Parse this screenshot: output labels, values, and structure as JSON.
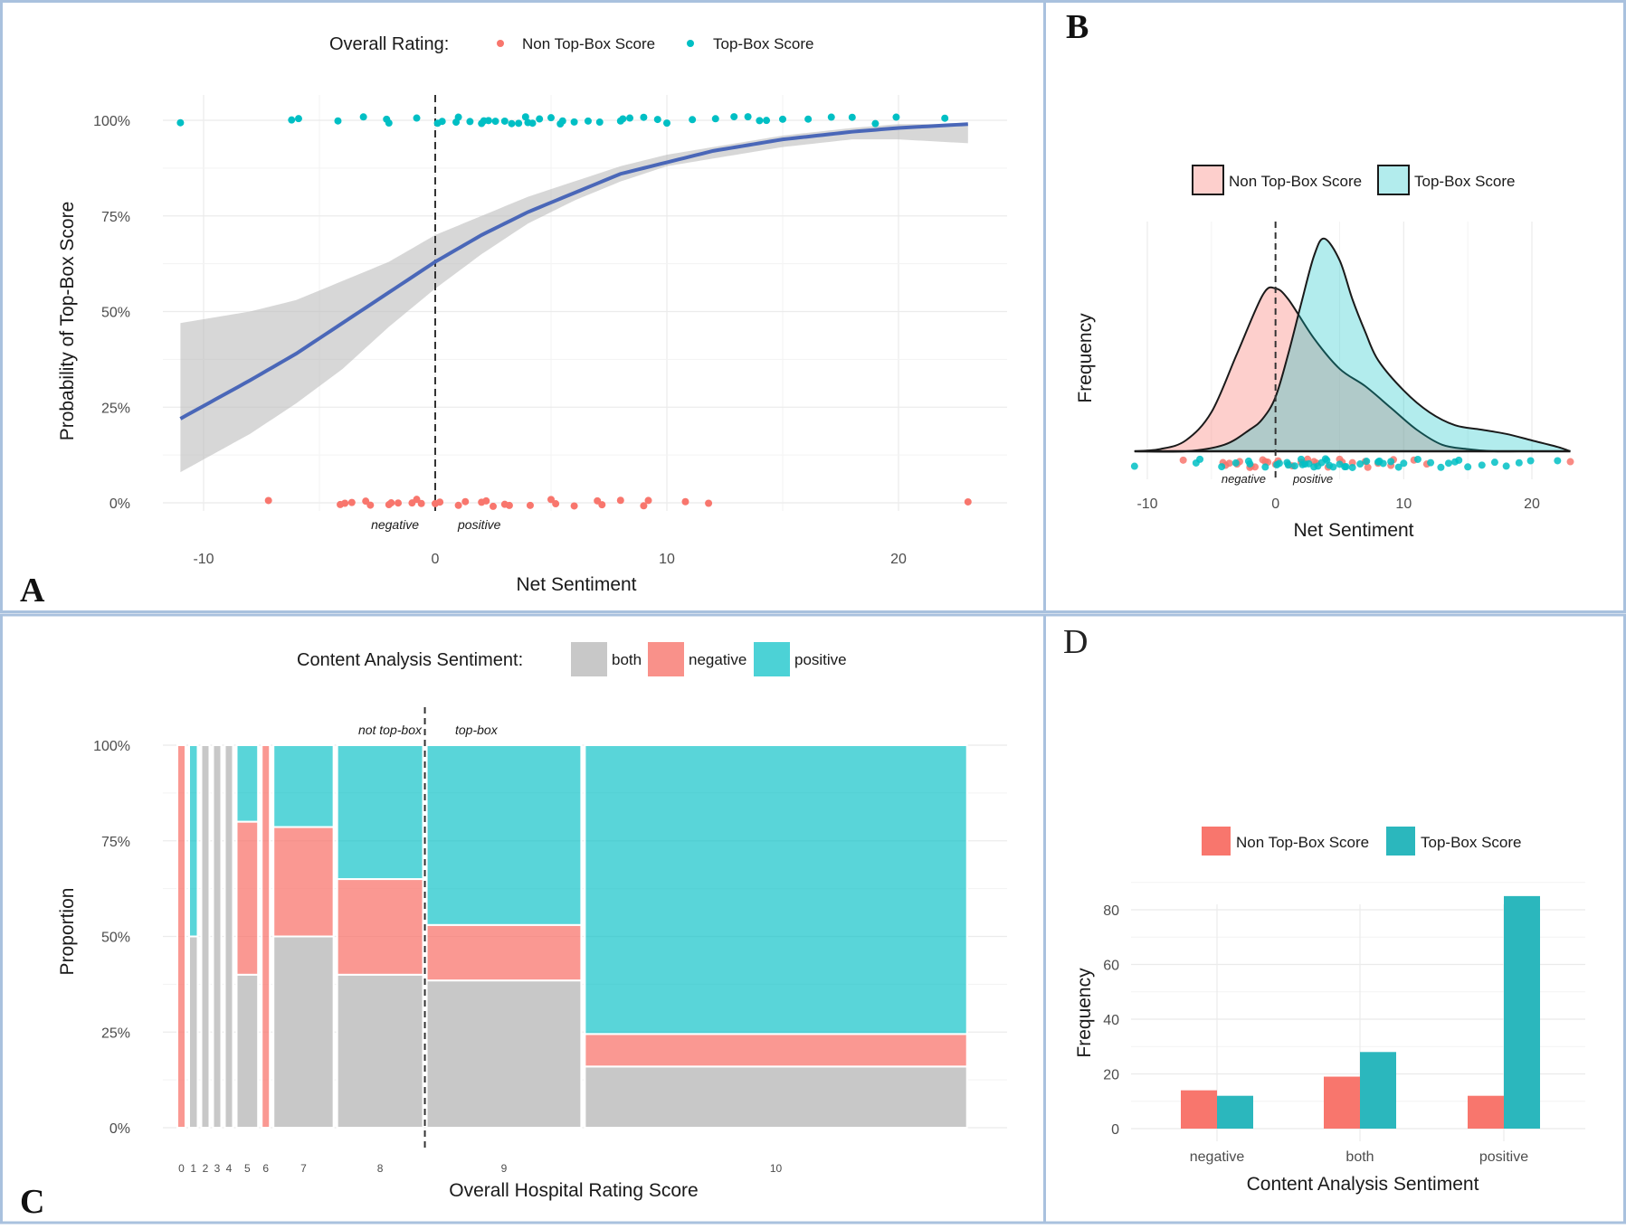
{
  "colors": {
    "non_top_box": "#F8766D",
    "top_box": "#00BFC4",
    "both": "#C8C8C8",
    "fit_line": "#4A67B8",
    "ribbon": "#BDBDBD",
    "panel_border": "#A9C1DE"
  },
  "chart_data": [
    {
      "panel": "A",
      "type": "scatter",
      "legend_title": "Overall Rating:",
      "legend": [
        "Non Top-Box Score",
        "Top-Box Score"
      ],
      "legend_position": "top",
      "xlabel": "Net Sentiment",
      "ylabel": "Probability of Top-Box Score",
      "xlim": [
        -11,
        23
      ],
      "ylim": [
        0,
        1
      ],
      "x_ticks": [
        "-10",
        "0",
        "10",
        "20"
      ],
      "y_ticks": [
        "0%",
        "25%",
        "50%",
        "75%",
        "100%"
      ],
      "annotations": [
        "negative",
        "positive"
      ],
      "grid": true,
      "reference_line_x": 0,
      "logistic_fit": {
        "x": [
          -11,
          -8,
          -6,
          -4,
          -2,
          0,
          2,
          4,
          6,
          8,
          10,
          12,
          15,
          18,
          20,
          23
        ],
        "y": [
          0.22,
          0.32,
          0.39,
          0.47,
          0.55,
          0.63,
          0.7,
          0.76,
          0.81,
          0.86,
          0.89,
          0.92,
          0.95,
          0.97,
          0.98,
          0.99
        ],
        "lower": [
          0.08,
          0.18,
          0.26,
          0.35,
          0.46,
          0.56,
          0.65,
          0.73,
          0.79,
          0.84,
          0.88,
          0.9,
          0.93,
          0.95,
          0.95,
          0.94
        ],
        "upper": [
          0.47,
          0.5,
          0.53,
          0.58,
          0.63,
          0.7,
          0.75,
          0.8,
          0.84,
          0.88,
          0.91,
          0.93,
          0.96,
          0.98,
          0.99,
          0.99
        ]
      },
      "series": [
        {
          "name": "Non Top-Box Score",
          "y": 0,
          "x": [
            -7.2,
            -4.1,
            -3.9,
            -3.6,
            -3.0,
            -2.8,
            -2.0,
            -1.9,
            -1.6,
            -1.0,
            -0.8,
            -0.6,
            0.0,
            0.2,
            1.0,
            1.3,
            2.0,
            2.2,
            2.5,
            3.0,
            3.2,
            4.1,
            5.0,
            5.2,
            6.0,
            7.0,
            7.2,
            8.0,
            9.0,
            9.2,
            10.8,
            11.8,
            23.0
          ]
        },
        {
          "name": "Top-Box Score",
          "y": 1,
          "x": [
            -11.0,
            -6.2,
            -5.9,
            -4.2,
            -3.1,
            -2.1,
            -2.0,
            -0.8,
            0.1,
            0.3,
            0.9,
            1.0,
            1.5,
            2.0,
            2.1,
            2.3,
            2.6,
            3.0,
            3.3,
            3.6,
            3.9,
            4.0,
            4.2,
            4.5,
            5.0,
            5.4,
            5.5,
            6.0,
            6.6,
            7.1,
            8.0,
            8.1,
            8.4,
            9.0,
            9.6,
            10.0,
            11.1,
            12.1,
            12.9,
            13.5,
            14.0,
            14.3,
            15.0,
            16.1,
            17.1,
            18.0,
            19.0,
            19.9,
            22.0
          ]
        }
      ]
    },
    {
      "panel": "B",
      "type": "area",
      "legend": [
        "Non Top-Box Score",
        "Top-Box Score"
      ],
      "legend_position": "top",
      "xlabel": "Net Sentiment",
      "ylabel": "Frequency",
      "xlim": [
        -11,
        23
      ],
      "x_ticks": [
        "-10",
        "0",
        "10",
        "20"
      ],
      "annotations": [
        "negative",
        "positive"
      ],
      "reference_line_x": 0,
      "series": [
        {
          "name": "Non Top-Box Score",
          "x": [
            -11,
            -9,
            -7,
            -5,
            -3,
            -1,
            0,
            1,
            3,
            5,
            7,
            9,
            11,
            13,
            15,
            17,
            19,
            21,
            23
          ],
          "density": [
            0.0,
            0.01,
            0.05,
            0.18,
            0.45,
            0.72,
            0.75,
            0.7,
            0.52,
            0.38,
            0.3,
            0.2,
            0.1,
            0.03,
            0.01,
            0.0,
            0.0,
            0.0,
            0.0
          ]
        },
        {
          "name": "Top-Box Score",
          "x": [
            -11,
            -7,
            -4,
            -2,
            -1,
            0,
            1,
            2,
            3,
            3.8,
            5,
            6,
            7,
            8,
            10,
            12,
            14,
            16,
            18,
            20,
            22,
            23
          ],
          "density": [
            0.0,
            0.0,
            0.03,
            0.1,
            0.15,
            0.25,
            0.45,
            0.68,
            0.9,
            0.98,
            0.88,
            0.7,
            0.55,
            0.42,
            0.28,
            0.18,
            0.12,
            0.1,
            0.08,
            0.05,
            0.02,
            0.0
          ]
        }
      ]
    },
    {
      "panel": "C",
      "type": "bar",
      "subtype": "mosaic",
      "legend_title": "Content Analysis Sentiment:",
      "legend": [
        "both",
        "negative",
        "positive"
      ],
      "legend_position": "top",
      "xlabel": "Overall Hospital Rating Score",
      "ylabel": "Proportion",
      "y_ticks": [
        "0%",
        "25%",
        "50%",
        "75%",
        "100%"
      ],
      "group_labels": [
        "not top-box",
        "top-box"
      ],
      "categories": [
        "0",
        "1",
        "2",
        "3",
        "4",
        "5",
        "6",
        "7",
        "8",
        "9",
        "10"
      ],
      "counts": [
        1,
        2,
        1,
        1,
        1,
        5,
        1,
        14,
        20,
        36,
        89
      ],
      "series": [
        {
          "name": "both",
          "values": [
            0,
            0.5,
            1,
            1,
            1,
            0.4,
            0,
            0.5,
            0.4,
            0.385,
            0.16
          ]
        },
        {
          "name": "negative",
          "values": [
            1,
            0,
            0,
            0,
            0,
            0.4,
            1,
            0.286,
            0.25,
            0.145,
            0.085
          ]
        },
        {
          "name": "positive",
          "values": [
            0,
            0.5,
            0,
            0,
            0,
            0.2,
            0,
            0.214,
            0.35,
            0.47,
            0.755
          ]
        }
      ]
    },
    {
      "panel": "D",
      "type": "bar",
      "legend": [
        "Non Top-Box Score",
        "Top-Box Score"
      ],
      "legend_position": "top",
      "xlabel": "Content Analysis Sentiment",
      "ylabel": "Frequency",
      "ylim": [
        0,
        90
      ],
      "y_ticks": [
        "0",
        "20",
        "40",
        "60",
        "80"
      ],
      "categories": [
        "negative",
        "both",
        "positive"
      ],
      "series": [
        {
          "name": "Non Top-Box Score",
          "values": [
            14,
            19,
            12
          ]
        },
        {
          "name": "Top-Box Score",
          "values": [
            12,
            28,
            85
          ]
        }
      ]
    }
  ],
  "panel_letters": [
    "A",
    "B",
    "C",
    "D"
  ]
}
